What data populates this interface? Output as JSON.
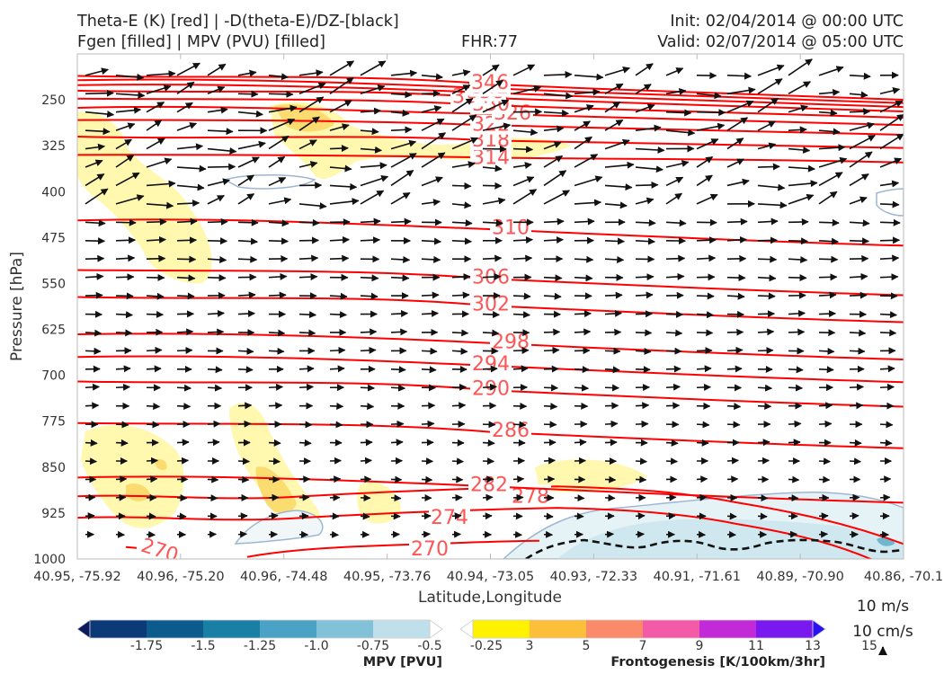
{
  "header": {
    "title_line1": "Theta-E (K) [red] | -D(theta-E)/DZ-[black]",
    "title_line2": "Fgen [filled] | MPV (PVU) [filled]",
    "fhr": "FHR:77",
    "init": "Init: 02/04/2014 @ 00:00 UTC",
    "valid": "Valid: 02/07/2014 @ 05:00 UTC"
  },
  "chart_data": {
    "type": "cross-section",
    "xlabel": "Latitude,Longitude",
    "ylabel": "Pressure [hPa]",
    "ylim": [
      1000,
      175
    ],
    "x_ticks": [
      "40.95, -75.92",
      "40.96, -75.20",
      "40.96, -74.48",
      "40.95, -73.76",
      "40.94, -73.05",
      "40.93, -72.33",
      "40.91, -71.61",
      "40.89, -70.90",
      "40.86, -70.1"
    ],
    "y_ticks": [
      250,
      325,
      400,
      475,
      550,
      625,
      700,
      775,
      850,
      925,
      1000
    ],
    "theta_e_contours": [
      {
        "value": "270",
        "p_left": 985
      },
      {
        "value": "274",
        "p_left": 940
      },
      {
        "value": "278",
        "p_left": 905
      },
      {
        "value": "282",
        "p_left": 867
      },
      {
        "value": "286",
        "p_left": 778
      },
      {
        "value": "290",
        "p_left": 710
      },
      {
        "value": "294",
        "p_left": 670
      },
      {
        "value": "298",
        "p_left": 633
      },
      {
        "value": "302",
        "p_left": 572
      },
      {
        "value": "306",
        "p_left": 528
      },
      {
        "value": "310",
        "p_left": 447
      },
      {
        "value": "314",
        "p_left": 340
      },
      {
        "value": "318",
        "p_left": 310
      },
      {
        "value": "322",
        "p_left": 283
      },
      {
        "value": "326",
        "p_left": 263
      },
      {
        "value": "330",
        "p_left": 248
      },
      {
        "value": "334",
        "p_left": 235
      },
      {
        "value": "338",
        "p_left": 226
      },
      {
        "value": "342",
        "p_left": 218
      },
      {
        "value": "346",
        "p_left": 211
      }
    ],
    "wind_legend": {
      "horizontal": "10 m/s",
      "vertical": "10 cm/s"
    },
    "mpv_colorbar": {
      "label": "MPV [PVU]",
      "levels": [
        "-1.75",
        "-1.5",
        "-1.25",
        "-1.0",
        "-0.75",
        "-0.5",
        "-0.25"
      ],
      "colors": [
        "#0b1a5e",
        "#0c3a78",
        "#0d5a8c",
        "#1a7fa4",
        "#4aa3c4",
        "#82c2d8",
        "#bfe0ea",
        "#ffffff"
      ]
    },
    "fgen_colorbar": {
      "label": "Frontogenesis [K/100km/3hr]",
      "levels": [
        "3",
        "5",
        "7",
        "9",
        "11",
        "13",
        "15"
      ],
      "colors": [
        "#ffffff",
        "#fff200",
        "#fbbf3a",
        "#fa8a6a",
        "#f35aa8",
        "#c12ad6",
        "#7a18f0",
        "#2a10f5"
      ]
    }
  }
}
